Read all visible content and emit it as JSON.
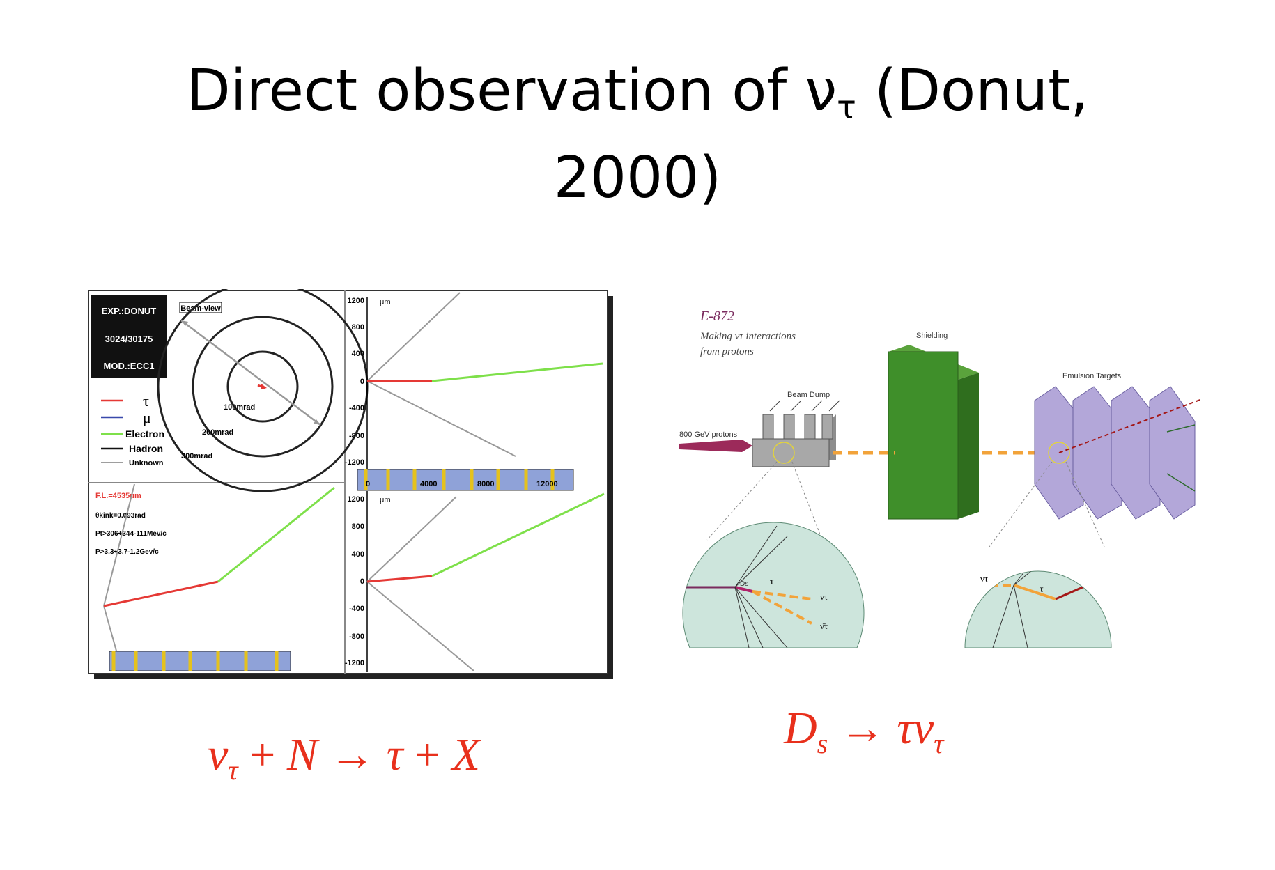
{
  "slide": {
    "title_line1_pre": "Direct observation of ν",
    "title_line1_sub": "τ",
    "title_line1_post": " (Donut,",
    "title_line2": "2000)"
  },
  "left_figure": {
    "info_box": {
      "exp": "EXP.:DONUT",
      "event": "3024/30175",
      "mod": "MOD.:ECC1"
    },
    "beam_view_label": "Beam-view",
    "ring_labels": [
      "100mrad",
      "200mrad",
      "300mrad"
    ],
    "legend": [
      {
        "label": "τ",
        "color": "#e53935"
      },
      {
        "label": "μ",
        "color": "#3949ab"
      },
      {
        "label": "Electron",
        "color": "#7ee04a"
      },
      {
        "label": "Hadron",
        "color": "#111111"
      },
      {
        "label": "Unknown",
        "color": "#9e9e9e"
      }
    ],
    "kinematics": {
      "fl": "F.L.=4535μm",
      "theta": "θkink=0.093rad",
      "pt": "Pt>306+344-111Mev/c",
      "p": "P>3.3+3.7-1.2Gev/c"
    },
    "top_axis": {
      "ticks": [
        "1200",
        "800",
        "400",
        "0",
        "-400",
        "-800",
        "-1200"
      ],
      "unit": "μm"
    },
    "bottom_axis": {
      "ticks": [
        "1200",
        "800",
        "400",
        "0",
        "-400",
        "-800",
        "-1200"
      ],
      "unit": "μm"
    },
    "x_ticks": [
      "0",
      "4000",
      "8000",
      "12000"
    ]
  },
  "right_figure": {
    "experiment": "E-872",
    "subtitle_line1": "Making ντ interactions",
    "subtitle_line2": "from protons",
    "labels": {
      "shielding": "Shielding",
      "beam_dump": "Beam Dump",
      "protons": "800 GeV protons",
      "emulsion": "Emulsion Targets",
      "ds": "Ds",
      "tau_left": "τ",
      "nu_tau": "ντ",
      "nu_tau_bar": "ν̄τ",
      "nu_tau_right": "ντ",
      "tau_right": "τ"
    },
    "colors": {
      "shielding": "#3f8f2a",
      "targets": "#b3a7d9",
      "dump": "#a8a8a8",
      "beam": "#9c2a5a",
      "decay": "#f2a33a"
    }
  },
  "equations": {
    "left": {
      "a": "ν",
      "a_sub": "τ",
      "op1": " + ",
      "b": "N",
      "arrow": " → ",
      "c": "τ",
      "op2": " + ",
      "d": "X"
    },
    "right": {
      "a": "D",
      "a_sub": "s",
      "arrow": " → ",
      "b": "τν",
      "b_sub": "τ"
    }
  }
}
